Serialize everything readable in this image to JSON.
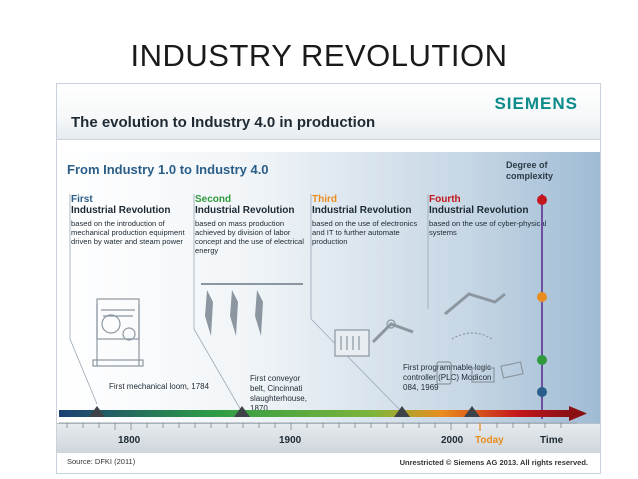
{
  "slide": {
    "title": "INDUSTRY REVOLUTION"
  },
  "figure": {
    "brand": "SIEMENS",
    "header_title": "The evolution to Industry 4.0 in production",
    "main_title": "From Industry 1.0 to Industry 4.0",
    "degree_label": "Degree of complexity",
    "revolutions": [
      {
        "ordinal": "First",
        "name": "Industrial Revolution",
        "color": "#2a5e88",
        "description": "based on the introduction of mechanical production equipment driven by water and steam power"
      },
      {
        "ordinal": "Second",
        "name": "Industrial Revolution",
        "color": "#2f9a3c",
        "description": "based on mass production achieved by division of labor concept and the use of electrical energy"
      },
      {
        "ordinal": "Third",
        "name": "Industrial Revolution",
        "color": "#e98d1f",
        "description": "based on the use of electronics and IT to further automate production"
      },
      {
        "ordinal": "Fourth",
        "name": "Industrial Revolution",
        "color": "#c4161c",
        "description": "based on the use of cyber-physical systems"
      }
    ],
    "milestones": [
      {
        "text": "First mechanical loom, 1784"
      },
      {
        "text": "First conveyor belt, Cincinnati slaughterhouse, 1870"
      },
      {
        "text": "First programmable logic controller (PLC) Modicon 084, 1969"
      }
    ],
    "timeline": {
      "ticks": [
        {
          "label": "1800",
          "color": "#1e2a33"
        },
        {
          "label": "1900",
          "color": "#1e2a33"
        },
        {
          "label": "2000",
          "color": "#1e2a33"
        },
        {
          "label": "Today",
          "color": "#e98d1f"
        },
        {
          "label": "Time",
          "color": "#1e2a33"
        }
      ]
    },
    "footer": {
      "source": "Source: DFKI (2011)",
      "copyright": "Unrestricted © Siemens AG 2013. All rights reserved."
    }
  }
}
